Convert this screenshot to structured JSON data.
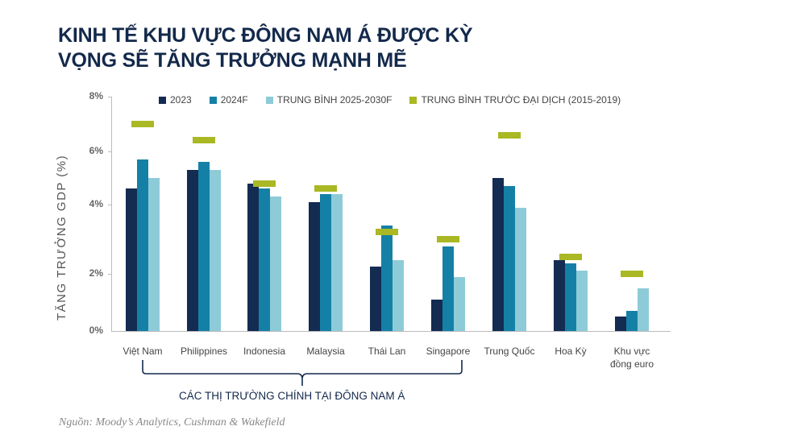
{
  "title": {
    "line1": "KINH TẾ KHU VỰC ĐÔNG NAM Á ĐƯỢC KỲ",
    "line2": "VỌNG SẼ TĂNG TRƯỞNG MẠNH MẼ"
  },
  "colors": {
    "title": "#13294b",
    "s2023": "#142b52",
    "s2024f": "#1580a6",
    "avg2530": "#8ecbd8",
    "pre_pandemic": "#a9b823"
  },
  "legend": [
    {
      "label": "2023",
      "color": "#142b52"
    },
    {
      "label": "2024F",
      "color": "#1580a6"
    },
    {
      "label": "TRUNG BÌNH 2025-2030F",
      "color": "#8ecbd8"
    },
    {
      "label": "TRUNG BÌNH TRƯỚC ĐẠI DỊCH (2015-2019)",
      "color": "#a9b823"
    }
  ],
  "yaxis": {
    "label": "TĂNG TRƯỞNG GDP (%)",
    "ticks": [
      "8%",
      "6%",
      "4%",
      "2%",
      "0%"
    ]
  },
  "bracket_label": "CÁC THỊ TRƯỜNG CHÍNH TẠI ĐÔNG NAM Á",
  "source": "Nguồn: Moody’s Analytics, Cushman & Wakefield",
  "chart_data": {
    "type": "bar",
    "title": "KINH TẾ KHU VỰC ĐÔNG NAM Á ĐƯỢC KỲ VỌNG SẼ TĂNG TRƯỞNG MẠNH MẼ",
    "xlabel": "",
    "ylabel": "TĂNG TRƯỞNG GDP (%)",
    "ylim": [
      0,
      8
    ],
    "yticks": [
      "0%",
      "2%",
      "4%",
      "6%",
      "8%"
    ],
    "grid": false,
    "legend_position": "top",
    "categories": [
      "Việt Nam",
      "Philippines",
      "Indonesia",
      "Malaysia",
      "Thái Lan",
      "Singapore",
      "Trung Quốc",
      "Hoa Kỳ",
      "Khu vực đồng euro"
    ],
    "series": [
      {
        "name": "2023",
        "type": "bar",
        "values": [
          4.6,
          5.3,
          4.8,
          4.1,
          2.2,
          1.1,
          5.0,
          2.4,
          0.5
        ]
      },
      {
        "name": "2024F",
        "type": "bar",
        "values": [
          5.7,
          5.6,
          4.6,
          4.4,
          3.4,
          2.8,
          4.7,
          2.3,
          0.7
        ]
      },
      {
        "name": "TRUNG BÌNH 2025-2030F",
        "type": "bar",
        "values": [
          5.0,
          5.3,
          4.3,
          4.4,
          2.4,
          1.9,
          3.9,
          2.1,
          1.5
        ]
      },
      {
        "name": "TRUNG BÌNH TRƯỚC ĐẠI DỊCH (2015-2019)",
        "type": "marker",
        "values": [
          7.0,
          6.4,
          4.8,
          4.6,
          3.2,
          3.0,
          6.6,
          2.5,
          2.0
        ]
      }
    ],
    "annotations": [
      "CÁC THỊ TRƯỜNG CHÍNH TẠI ĐÔNG NAM Á (bracket under Việt Nam … Singapore)"
    ]
  }
}
